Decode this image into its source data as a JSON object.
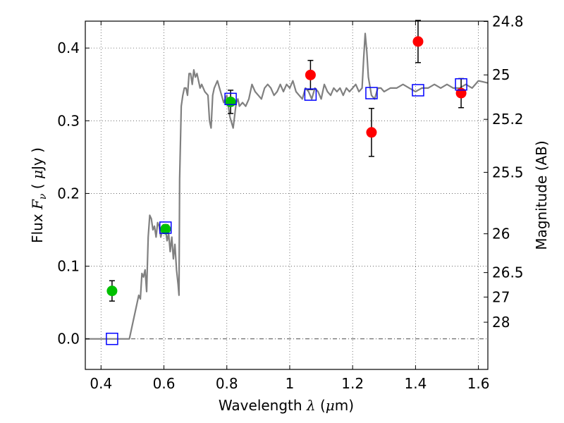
{
  "chart_data": {
    "type": "scatter",
    "xlabel": {
      "prefix": "Wavelength  ",
      "symbol": "λ",
      "unit_open": " (",
      "unit_mu": "μ",
      "unit_close": "m)"
    },
    "ylabel": {
      "prefix": "Flux  ",
      "symbol": "F",
      "subscript": "ν",
      "unit_open": " ( ",
      "unit_mu": "μ",
      "unit_close": "Jy )"
    },
    "y2label": "Magnitude (AB)",
    "xlim": [
      0.35,
      1.63
    ],
    "ylim": [
      -0.042,
      0.437
    ],
    "x_ticks": [
      0.4,
      0.6,
      0.8,
      1.0,
      1.2,
      1.4,
      1.6
    ],
    "x_tick_labels": [
      "0.4",
      "0.6",
      "0.8",
      "1",
      "1.2",
      "1.4",
      "1.6"
    ],
    "y_ticks": [
      0.0,
      0.1,
      0.2,
      0.3,
      0.4
    ],
    "y_tick_labels": [
      "0.0",
      "0.1",
      "0.2",
      "0.3",
      "0.4"
    ],
    "mag_ticks": [
      24.8,
      25,
      25.2,
      25.5,
      26,
      26.5,
      27,
      28
    ],
    "mag_tick_labels": [
      "24.8",
      "25",
      "25.2",
      "25.5",
      "26",
      "26.5",
      "27",
      "28"
    ],
    "grid": true,
    "colors": {
      "model": "#808080",
      "green": "#00c000",
      "red": "#ff0000",
      "square": "#0000ff",
      "errorbar": "#000000",
      "grid": "#555555"
    },
    "model_sed": {
      "name": "model spectrum",
      "x": [
        0.35,
        0.47,
        0.48,
        0.49,
        0.5,
        0.51,
        0.52,
        0.525,
        0.53,
        0.535,
        0.54,
        0.545,
        0.55,
        0.555,
        0.56,
        0.565,
        0.57,
        0.575,
        0.58,
        0.585,
        0.59,
        0.595,
        0.6,
        0.605,
        0.61,
        0.615,
        0.62,
        0.625,
        0.63,
        0.635,
        0.64,
        0.645,
        0.648,
        0.65,
        0.655,
        0.66,
        0.665,
        0.67,
        0.675,
        0.68,
        0.685,
        0.69,
        0.695,
        0.7,
        0.705,
        0.71,
        0.715,
        0.72,
        0.73,
        0.74,
        0.745,
        0.75,
        0.755,
        0.76,
        0.77,
        0.78,
        0.79,
        0.8,
        0.81,
        0.82,
        0.83,
        0.835,
        0.84,
        0.85,
        0.86,
        0.87,
        0.88,
        0.89,
        0.9,
        0.91,
        0.92,
        0.93,
        0.94,
        0.95,
        0.96,
        0.97,
        0.98,
        0.99,
        1.0,
        1.01,
        1.02,
        1.03,
        1.04,
        1.05,
        1.06,
        1.07,
        1.08,
        1.09,
        1.1,
        1.11,
        1.12,
        1.13,
        1.14,
        1.15,
        1.16,
        1.17,
        1.18,
        1.19,
        1.2,
        1.21,
        1.22,
        1.23,
        1.235,
        1.24,
        1.245,
        1.25,
        1.26,
        1.27,
        1.28,
        1.29,
        1.3,
        1.32,
        1.34,
        1.36,
        1.38,
        1.4,
        1.42,
        1.44,
        1.46,
        1.48,
        1.5,
        1.52,
        1.54,
        1.56,
        1.58,
        1.6,
        1.63
      ],
      "y": [
        0.0,
        0.0,
        0.0,
        0.0,
        0.02,
        0.04,
        0.06,
        0.055,
        0.09,
        0.085,
        0.095,
        0.065,
        0.14,
        0.17,
        0.165,
        0.15,
        0.155,
        0.14,
        0.16,
        0.155,
        0.14,
        0.15,
        0.145,
        0.15,
        0.135,
        0.145,
        0.12,
        0.14,
        0.11,
        0.13,
        0.095,
        0.075,
        0.06,
        0.22,
        0.32,
        0.335,
        0.345,
        0.345,
        0.335,
        0.365,
        0.365,
        0.35,
        0.37,
        0.36,
        0.365,
        0.355,
        0.345,
        0.35,
        0.34,
        0.335,
        0.3,
        0.29,
        0.335,
        0.345,
        0.355,
        0.34,
        0.325,
        0.335,
        0.305,
        0.29,
        0.325,
        0.33,
        0.32,
        0.325,
        0.32,
        0.33,
        0.35,
        0.34,
        0.335,
        0.33,
        0.345,
        0.35,
        0.345,
        0.335,
        0.34,
        0.35,
        0.34,
        0.35,
        0.345,
        0.355,
        0.34,
        0.335,
        0.33,
        0.345,
        0.34,
        0.33,
        0.345,
        0.34,
        0.33,
        0.35,
        0.34,
        0.335,
        0.345,
        0.34,
        0.345,
        0.335,
        0.345,
        0.34,
        0.345,
        0.35,
        0.34,
        0.345,
        0.385,
        0.42,
        0.395,
        0.36,
        0.335,
        0.33,
        0.345,
        0.345,
        0.34,
        0.345,
        0.345,
        0.35,
        0.345,
        0.34,
        0.345,
        0.345,
        0.35,
        0.345,
        0.35,
        0.345,
        0.345,
        0.35,
        0.345,
        0.355,
        0.352
      ]
    },
    "series": [
      {
        "name": "green points",
        "marker": "circle",
        "color": "#00c000",
        "x": [
          0.435,
          0.605,
          0.812
        ],
        "y": [
          0.066,
          0.151,
          0.326
        ],
        "err": [
          0.014,
          0.006,
          0.016
        ]
      },
      {
        "name": "red points",
        "marker": "circle",
        "color": "#ff0000",
        "x": [
          1.066,
          1.26,
          1.408,
          1.545
        ],
        "y": [
          0.363,
          0.284,
          0.409,
          0.338
        ],
        "err": [
          0.02,
          0.033,
          0.029,
          0.02
        ]
      },
      {
        "name": "model photometry",
        "marker": "square",
        "color": "#0000ff",
        "x": [
          0.435,
          0.605,
          0.812,
          1.066,
          1.26,
          1.408,
          1.545
        ],
        "y": [
          0.0,
          0.153,
          0.33,
          0.336,
          0.338,
          0.342,
          0.35
        ]
      }
    ]
  }
}
